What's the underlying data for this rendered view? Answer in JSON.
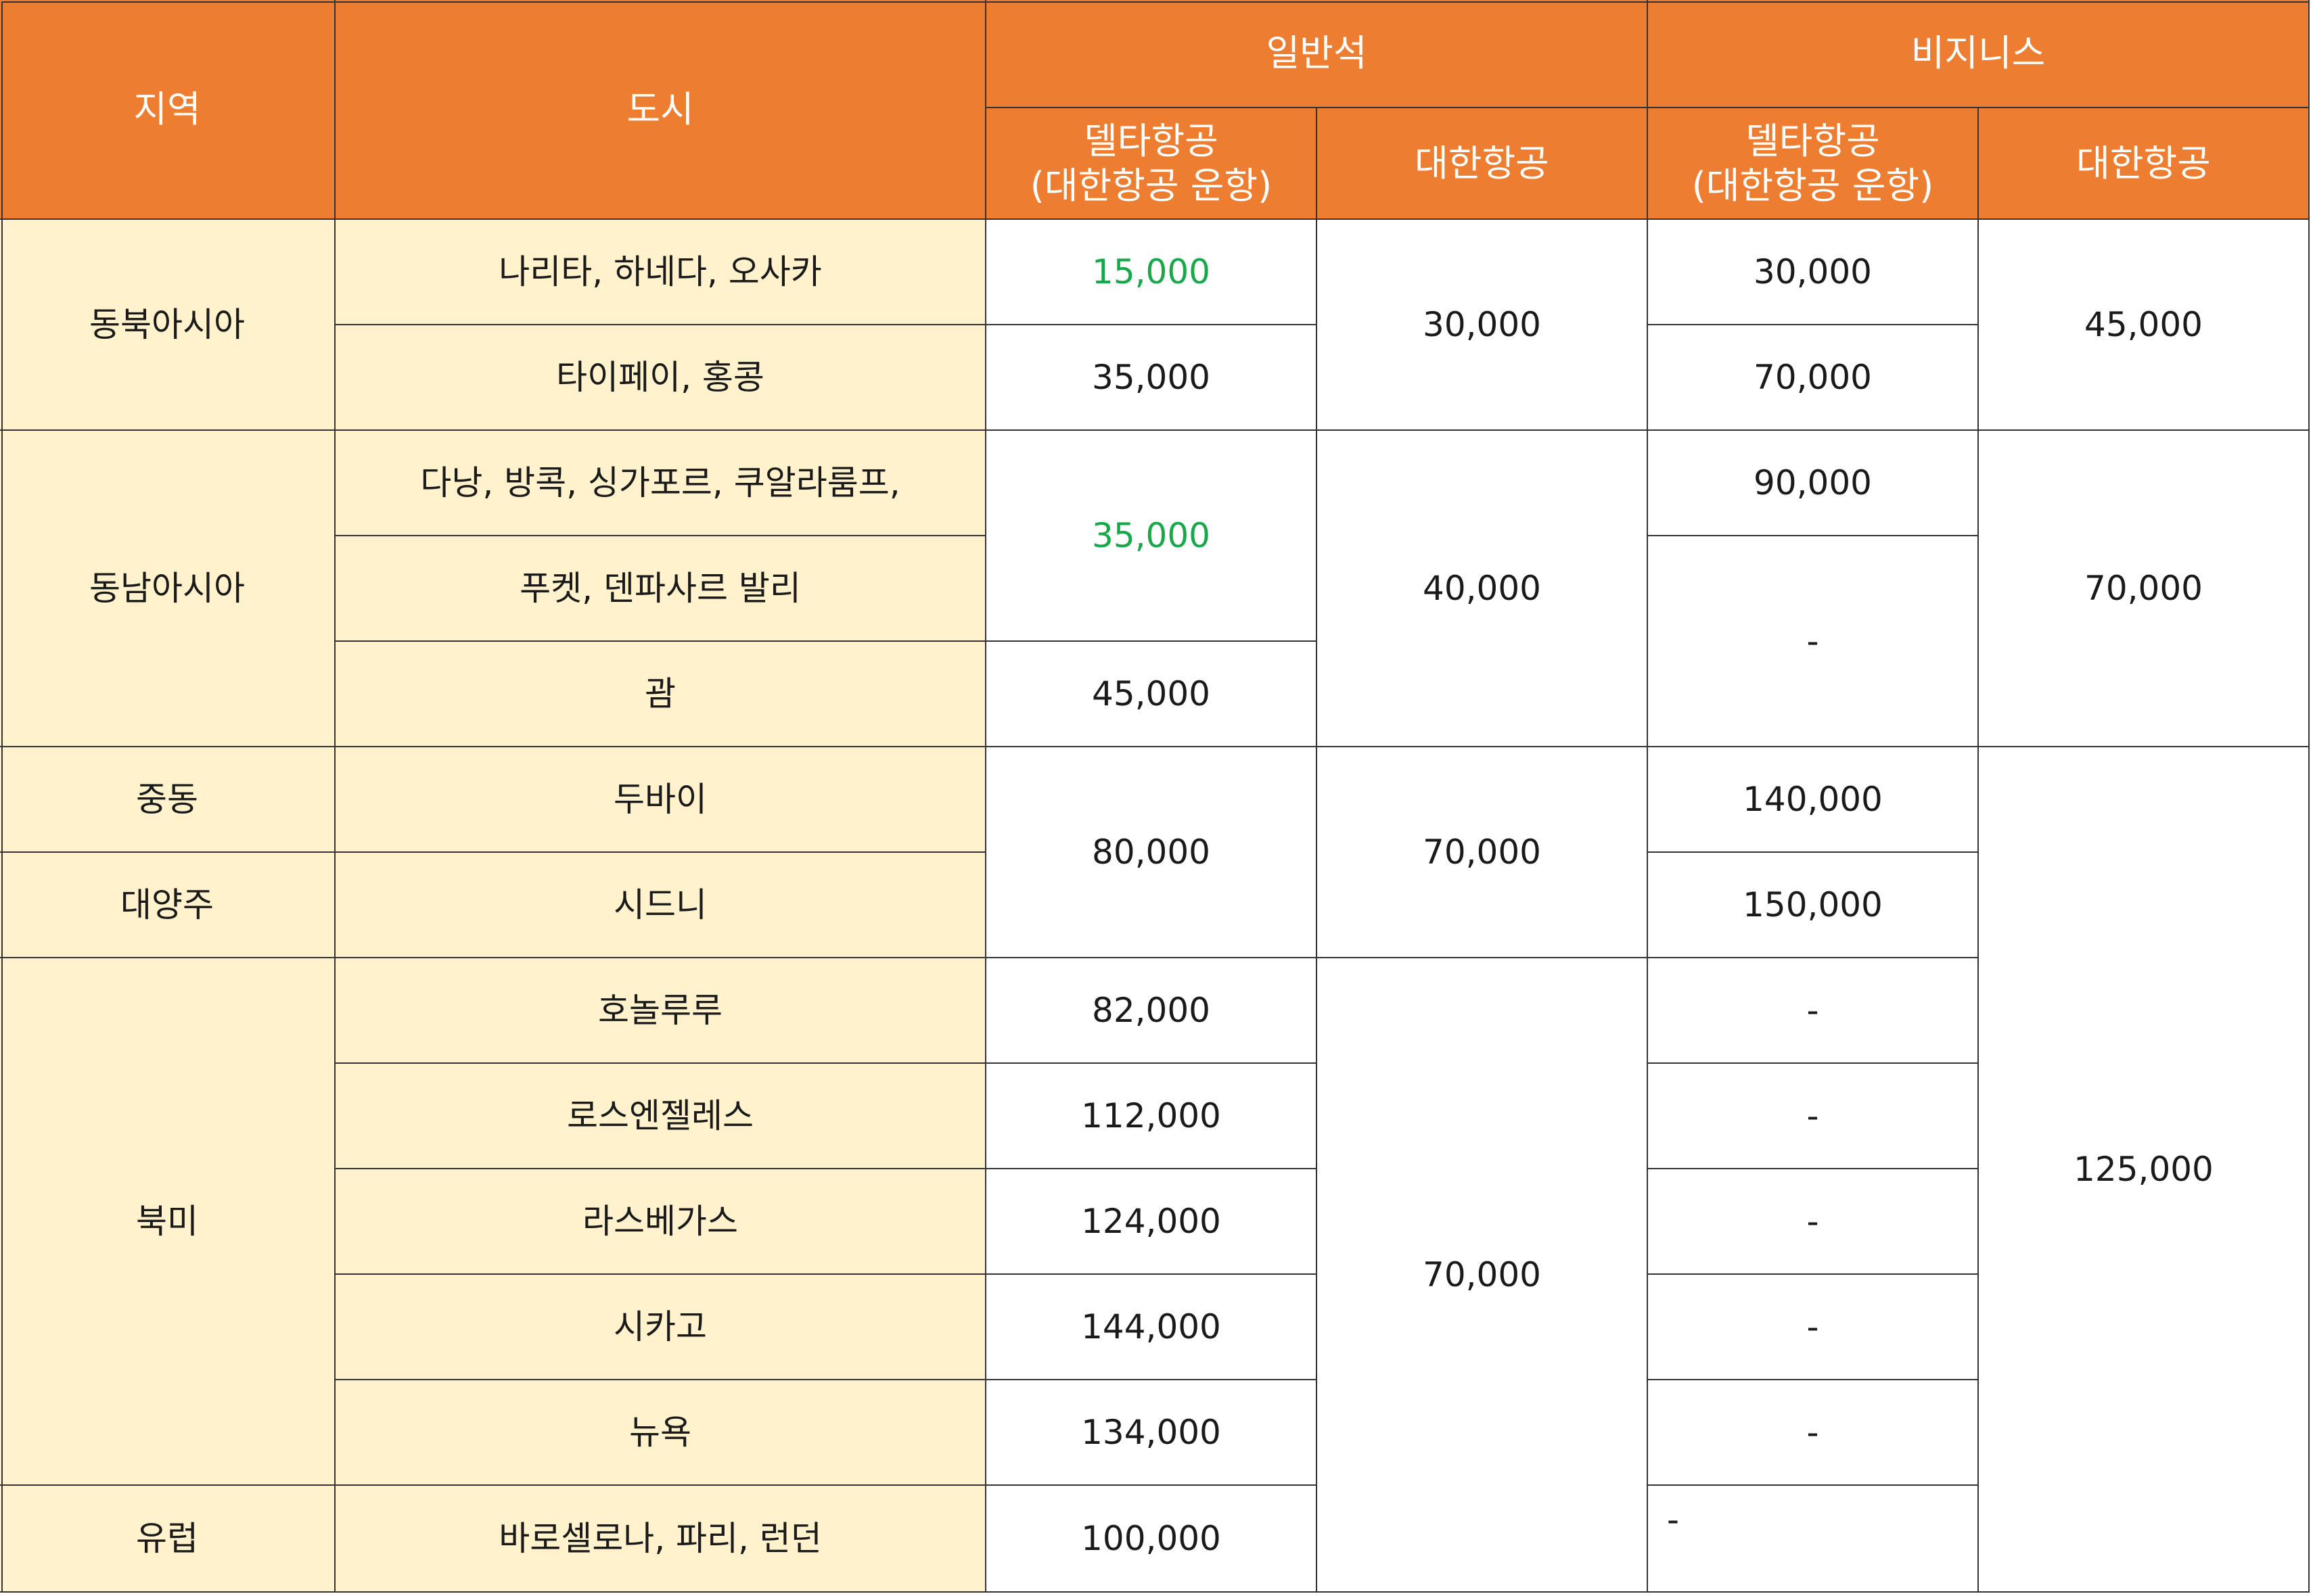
{
  "headers": {
    "region": "지역",
    "city": "도시",
    "economy": "일반석",
    "business": "비지니스",
    "delta_korean": "델타항공\n(대한항공 운항)",
    "korean_air": "대한항공"
  },
  "regions": {
    "northeast_asia": "동북아시아",
    "southeast_asia": "동남아시아",
    "middle_east": "중동",
    "oceania": "대양주",
    "north_america": "북미",
    "europe": "유럽"
  },
  "cities": {
    "narita": "나리타, 하네다, 오사카",
    "taipei": "타이페이, 홍콩",
    "danang": "다낭, 방콕, 싱가포르, 쿠알라룸프,",
    "phuket": "푸켓, 덴파사르 발리",
    "guam": "괌",
    "dubai": "두바이",
    "sydney": "시드니",
    "honolulu": "호놀루루",
    "los_angeles": "로스엔젤레스",
    "las_vegas": "라스베가스",
    "chicago": "시카고",
    "new_york": "뉴욕",
    "barcelona": "바로셀로나, 파리, 런던"
  },
  "values": {
    "v15000": "15,000",
    "v30000": "30,000",
    "v35000": "35,000",
    "v40000": "40,000",
    "v45000": "45,000",
    "v70000": "70,000",
    "v80000": "80,000",
    "v82000": "82,000",
    "v90000": "90,000",
    "v100000": "100,000",
    "v112000": "112,000",
    "v124000": "124,000",
    "v125000": "125,000",
    "v134000": "134,000",
    "v140000": "140,000",
    "v144000": "144,000",
    "v150000": "150,000",
    "dash": "-"
  },
  "colors": {
    "header_bg": "#ed7d31",
    "label_bg": "#fff2cc",
    "highlight_text": "#17a84a",
    "border": "#333333"
  }
}
